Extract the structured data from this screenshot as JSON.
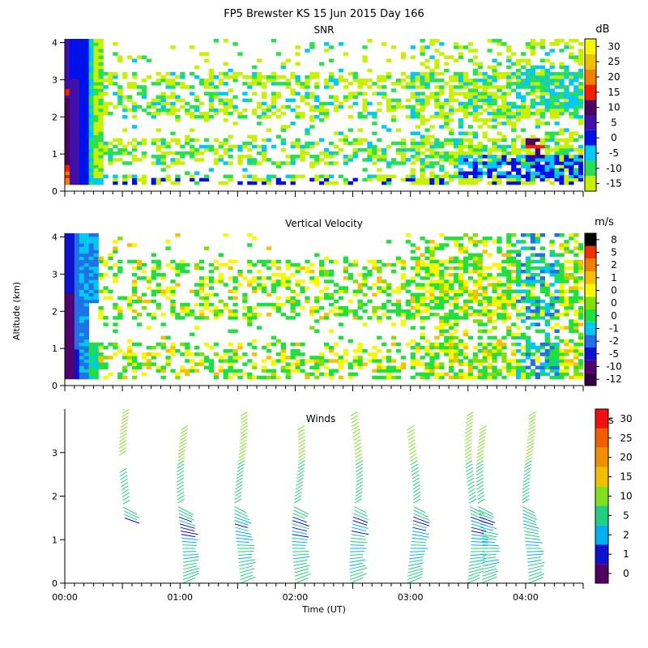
{
  "title": "FP5 Brewster KS  15 Jun 2015 Day 166",
  "xlabel": "Time (UT)",
  "ylabel": "Altitude (km)",
  "chart_data": [
    {
      "type": "heatmap",
      "title": "SNR",
      "units": "dB",
      "xlim": [
        "00:00",
        "04:30"
      ],
      "ylim": [
        0,
        4.1
      ],
      "yticks": [
        "0",
        "1",
        "2",
        "3",
        "4"
      ],
      "xticks": [],
      "colorbar": {
        "labels": [
          "-15",
          "-10",
          "-5",
          "0",
          "5",
          "10",
          "15",
          "20",
          "25",
          "30"
        ],
        "colors": [
          "#c8f000",
          "#28e050",
          "#00c8f8",
          "#0010e8",
          "#4010a8",
          "#500060",
          "#f02000",
          "#f08000",
          "#f0c000",
          "#f8f800"
        ]
      }
    },
    {
      "type": "heatmap",
      "title": "Vertical Velocity",
      "units": "m/s",
      "xlim": [
        "00:00",
        "04:30"
      ],
      "ylim": [
        0,
        4.1
      ],
      "yticks": [
        "0",
        "1",
        "2",
        "3",
        "4"
      ],
      "xticks": [],
      "colorbar": {
        "labels": [
          "-12",
          "-10",
          "-5",
          "-2",
          "-1",
          "0",
          "0",
          "0",
          "1",
          "2",
          "5",
          "8"
        ],
        "colors": [
          "#300040",
          "#500070",
          "#1010d0",
          "#2070e8",
          "#00c8f0",
          "#20e040",
          "#80e000",
          "#f8f800",
          "#f8c000",
          "#f08000",
          "#f03000",
          "#000000"
        ]
      }
    },
    {
      "type": "scatter",
      "title": "Winds",
      "units": "m/s",
      "xlim": [
        "00:00",
        "04:30"
      ],
      "ylim": [
        0,
        4
      ],
      "yticks": [
        "0",
        "1",
        "2",
        "3"
      ],
      "xticks": [
        "00:00",
        "01:00",
        "02:00",
        "03:00",
        "04:00"
      ],
      "profile_times_hours": [
        0.5,
        1.0,
        1.5,
        2.0,
        2.5,
        3.0,
        3.5,
        3.6,
        4.0
      ],
      "colorbar": {
        "labels": [
          "0",
          "1",
          "2",
          "5",
          "10",
          "15",
          "20",
          "25",
          "30"
        ],
        "colors": [
          "#500060",
          "#1010d0",
          "#00b0f0",
          "#20d080",
          "#80e020",
          "#f0c000",
          "#f09000",
          "#f06000",
          "#f01010"
        ]
      }
    }
  ]
}
